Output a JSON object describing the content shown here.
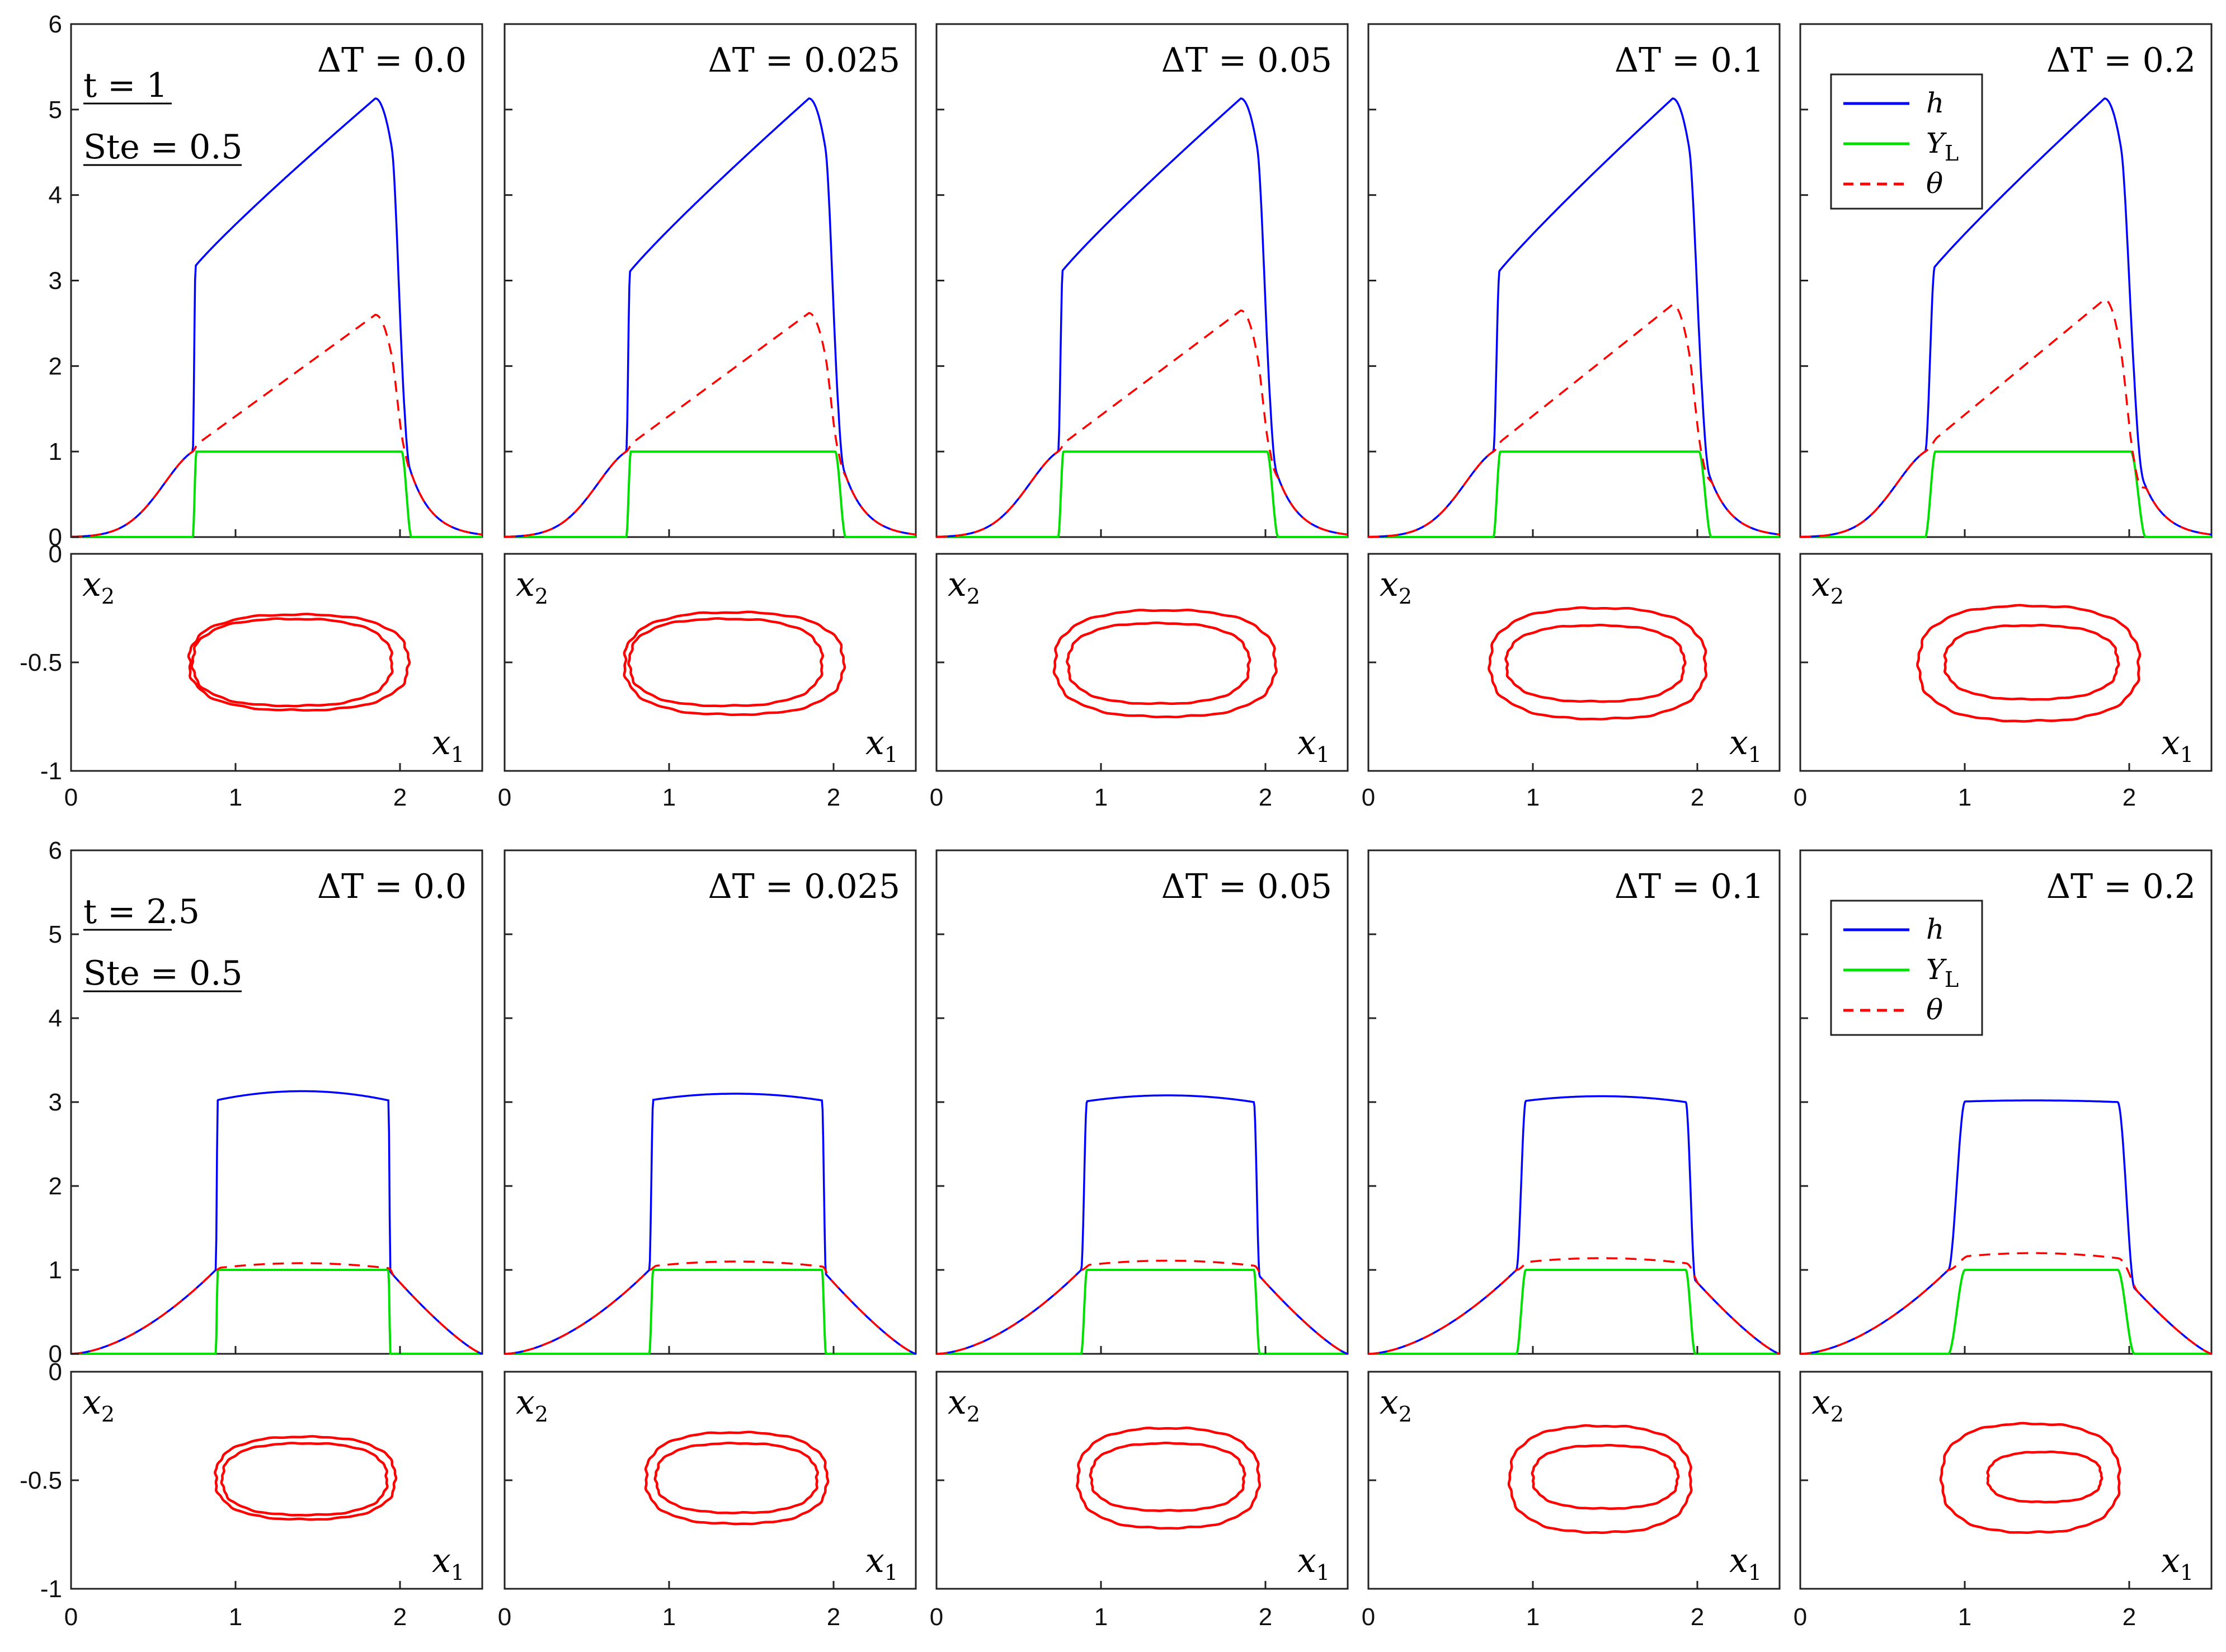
{
  "chart_data": {
    "type": "line",
    "layout": "2 time blocks x 5 columns; each column has a profile plot above a contour plot",
    "column_titles": [
      "ΔT = 0.0",
      "ΔT = 0.025",
      "ΔT = 0.05",
      "ΔT = 0.1",
      "ΔT = 0.2"
    ],
    "legend": [
      {
        "name": "h",
        "color": "#0000ff",
        "style": "solid"
      },
      {
        "name": "Y_L",
        "color": "#00e000",
        "style": "solid"
      },
      {
        "name": "θ",
        "color": "#ff0000",
        "style": "dashed"
      }
    ],
    "blocks": [
      {
        "annotations": [
          "t = 1",
          "Ste = 0.5"
        ],
        "x_ticks": [
          "0",
          "1",
          "2"
        ],
        "profile_axis": {
          "xlim": [
            0,
            2.5
          ],
          "ylim": [
            0,
            6
          ],
          "y_ticks": [
            "0",
            "1",
            "2",
            "3",
            "4",
            "5",
            "6"
          ]
        },
        "contour_axis": {
          "xlim": [
            0,
            2.5
          ],
          "ylim": [
            -1,
            0
          ],
          "y_ticks": [
            "0",
            "-0.5",
            "-1"
          ],
          "xlabel": "x₁",
          "ylabel": "x₂"
        },
        "panels": [
          {
            "delta_T": 0.0,
            "front": 0.74,
            "rear": 2.03,
            "h_front": 3.13,
            "h_peak": 5.13,
            "x_peak": 1.85,
            "theta_peak": 2.6,
            "contour": {
              "outer": [
                0.72,
                2.05,
                -0.28,
                -0.72
              ],
              "inner": [
                0.74,
                1.95,
                -0.3,
                -0.7
              ]
            }
          },
          {
            "delta_T": 0.025,
            "front": 0.74,
            "rear": 2.03,
            "h_front": 3.05,
            "h_peak": 5.13,
            "x_peak": 1.85,
            "theta_peak": 2.62,
            "contour": {
              "outer": [
                0.73,
                2.06,
                -0.27,
                -0.74
              ],
              "inner": [
                0.76,
                1.93,
                -0.3,
                -0.7
              ]
            }
          },
          {
            "delta_T": 0.05,
            "front": 0.74,
            "rear": 2.03,
            "h_front": 3.05,
            "h_peak": 5.13,
            "x_peak": 1.85,
            "theta_peak": 2.65,
            "contour": {
              "outer": [
                0.72,
                2.06,
                -0.26,
                -0.75
              ],
              "inner": [
                0.8,
                1.9,
                -0.32,
                -0.69
              ]
            }
          },
          {
            "delta_T": 0.1,
            "front": 0.76,
            "rear": 2.03,
            "h_front": 3.02,
            "h_peak": 5.13,
            "x_peak": 1.85,
            "theta_peak": 2.72,
            "contour": {
              "outer": [
                0.74,
                2.05,
                -0.25,
                -0.76
              ],
              "inner": [
                0.84,
                1.92,
                -0.33,
                -0.68
              ]
            }
          },
          {
            "delta_T": 0.2,
            "front": 0.76,
            "rear": 2.03,
            "h_front": 3.02,
            "h_peak": 5.13,
            "x_peak": 1.85,
            "theta_peak": 2.78,
            "contour": {
              "outer": [
                0.72,
                2.06,
                -0.24,
                -0.77
              ],
              "inner": [
                0.88,
                1.93,
                -0.33,
                -0.67
              ]
            }
          }
        ]
      },
      {
        "annotations": [
          "t = 2.5",
          "Ste = 0.5"
        ],
        "x_ticks": [
          "0",
          "1",
          "2"
        ],
        "profile_axis": {
          "xlim": [
            0,
            2.5
          ],
          "ylim": [
            0,
            6
          ],
          "y_ticks": [
            "0",
            "1",
            "2",
            "3",
            "4",
            "5",
            "6"
          ]
        },
        "contour_axis": {
          "xlim": [
            0,
            2.5
          ],
          "ylim": [
            -1,
            0
          ],
          "y_ticks": [
            "0",
            "-0.5",
            "-1"
          ],
          "xlabel": "x₁",
          "ylabel": "x₂"
        },
        "panels": [
          {
            "delta_T": 0.0,
            "front": 0.88,
            "rear": 1.93,
            "h_flat": 3.02,
            "h_mid": 3.13,
            "theta_plateau": 1.08,
            "contour": {
              "outer": [
                0.88,
                1.97,
                -0.3,
                -0.68
              ],
              "inner": [
                0.92,
                1.92,
                -0.33,
                -0.66
              ]
            }
          },
          {
            "delta_T": 0.025,
            "front": 0.88,
            "rear": 1.93,
            "h_flat": 3.02,
            "h_mid": 3.1,
            "theta_plateau": 1.1,
            "contour": {
              "outer": [
                0.86,
                1.96,
                -0.28,
                -0.7
              ],
              "inner": [
                0.92,
                1.9,
                -0.33,
                -0.65
              ]
            }
          },
          {
            "delta_T": 0.05,
            "front": 0.88,
            "rear": 1.93,
            "h_flat": 3.0,
            "h_mid": 3.08,
            "theta_plateau": 1.11,
            "contour": {
              "outer": [
                0.86,
                1.96,
                -0.26,
                -0.72
              ],
              "inner": [
                0.94,
                1.87,
                -0.33,
                -0.64
              ]
            }
          },
          {
            "delta_T": 0.1,
            "front": 0.9,
            "rear": 1.93,
            "h_flat": 3.0,
            "h_mid": 3.07,
            "theta_plateau": 1.14,
            "contour": {
              "outer": [
                0.86,
                1.96,
                -0.25,
                -0.74
              ],
              "inner": [
                1.0,
                1.88,
                -0.34,
                -0.63
              ]
            }
          },
          {
            "delta_T": 0.2,
            "front": 0.9,
            "rear": 1.93,
            "h_flat": 3.0,
            "h_mid": 3.02,
            "theta_plateau": 1.2,
            "contour": {
              "outer": [
                0.86,
                1.94,
                -0.24,
                -0.74
              ],
              "inner": [
                1.14,
                1.83,
                -0.37,
                -0.6
              ]
            }
          }
        ]
      }
    ]
  }
}
